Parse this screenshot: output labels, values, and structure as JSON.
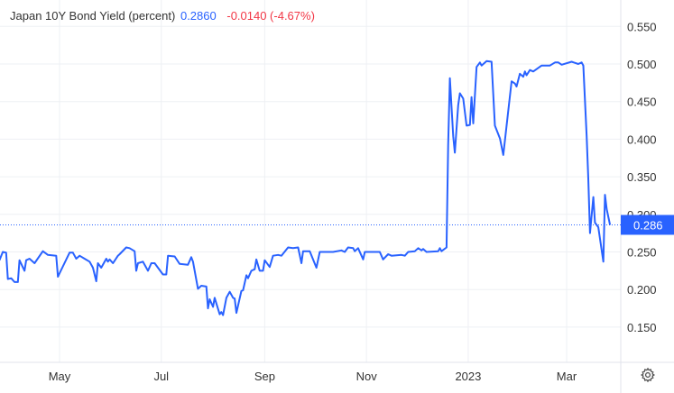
{
  "legend": {
    "name": "Japan 10Y Bond Yield (percent)",
    "last": "0.2860",
    "change": "-0.0140 (-4.67%)"
  },
  "price_label": "0.286",
  "colors": {
    "line": "#2962ff",
    "negative": "#f23645",
    "grid": "#e8ebf0"
  },
  "settings_icon": "gear-icon",
  "chart_data": {
    "type": "line",
    "title": "Japan 10Y Bond Yield (percent)",
    "xlabel": "",
    "ylabel": "",
    "ylim": [
      0.125,
      0.555
    ],
    "grid": true,
    "y_axis_side": "right",
    "x_ticks": [
      {
        "date": "2022-05-01",
        "label": "May"
      },
      {
        "date": "2022-07-01",
        "label": "Jul"
      },
      {
        "date": "2022-09-01",
        "label": "Sep"
      },
      {
        "date": "2022-11-01",
        "label": "Nov"
      },
      {
        "date": "2023-01-01",
        "label": "2023"
      },
      {
        "date": "2023-03-01",
        "label": "Mar"
      }
    ],
    "y_ticks": [
      "0.150",
      "0.200",
      "0.250",
      "0.300",
      "0.350",
      "0.400",
      "0.450",
      "0.500",
      "0.550"
    ],
    "last_value": 0.286,
    "series": [
      {
        "points": [
          [
            "2022-03-26",
            0.239
          ],
          [
            "2022-03-28",
            0.25
          ],
          [
            "2022-03-30",
            0.249
          ],
          [
            "2022-03-31",
            0.214
          ],
          [
            "2022-04-02",
            0.215
          ],
          [
            "2022-04-04",
            0.21
          ],
          [
            "2022-04-06",
            0.21
          ],
          [
            "2022-04-07",
            0.239
          ],
          [
            "2022-04-10",
            0.225
          ],
          [
            "2022-04-11",
            0.239
          ],
          [
            "2022-04-13",
            0.241
          ],
          [
            "2022-04-16",
            0.235
          ],
          [
            "2022-04-21",
            0.251
          ],
          [
            "2022-04-24",
            0.246
          ],
          [
            "2022-04-29",
            0.245
          ],
          [
            "2022-04-30",
            0.217
          ],
          [
            "2022-05-02",
            0.226
          ],
          [
            "2022-05-07",
            0.249
          ],
          [
            "2022-05-09",
            0.249
          ],
          [
            "2022-05-11",
            0.241
          ],
          [
            "2022-05-13",
            0.245
          ],
          [
            "2022-05-16",
            0.241
          ],
          [
            "2022-05-19",
            0.237
          ],
          [
            "2022-05-21",
            0.229
          ],
          [
            "2022-05-23",
            0.211
          ],
          [
            "2022-05-24",
            0.235
          ],
          [
            "2022-05-26",
            0.229
          ],
          [
            "2022-05-29",
            0.241
          ],
          [
            "2022-05-30",
            0.237
          ],
          [
            "2022-05-31",
            0.24
          ],
          [
            "2022-06-02",
            0.235
          ],
          [
            "2022-06-05",
            0.245
          ],
          [
            "2022-06-06",
            0.247
          ],
          [
            "2022-06-10",
            0.256
          ],
          [
            "2022-06-12",
            0.255
          ],
          [
            "2022-06-15",
            0.251
          ],
          [
            "2022-06-16",
            0.225
          ],
          [
            "2022-06-17",
            0.235
          ],
          [
            "2022-06-20",
            0.237
          ],
          [
            "2022-06-23",
            0.225
          ],
          [
            "2022-06-25",
            0.235
          ],
          [
            "2022-06-27",
            0.235
          ],
          [
            "2022-07-02",
            0.22
          ],
          [
            "2022-07-04",
            0.22
          ],
          [
            "2022-07-05",
            0.245
          ],
          [
            "2022-07-09",
            0.244
          ],
          [
            "2022-07-12",
            0.234
          ],
          [
            "2022-07-17",
            0.233
          ],
          [
            "2022-07-19",
            0.243
          ],
          [
            "2022-07-20",
            0.237
          ],
          [
            "2022-07-23",
            0.201
          ],
          [
            "2022-07-25",
            0.205
          ],
          [
            "2022-07-28",
            0.204
          ],
          [
            "2022-07-29",
            0.175
          ],
          [
            "2022-07-30",
            0.187
          ],
          [
            "2022-08-01",
            0.177
          ],
          [
            "2022-08-02",
            0.189
          ],
          [
            "2022-08-05",
            0.167
          ],
          [
            "2022-08-06",
            0.17
          ],
          [
            "2022-08-07",
            0.166
          ],
          [
            "2022-08-09",
            0.189
          ],
          [
            "2022-08-11",
            0.197
          ],
          [
            "2022-08-13",
            0.189
          ],
          [
            "2022-08-14",
            0.188
          ],
          [
            "2022-08-15",
            0.169
          ],
          [
            "2022-08-18",
            0.198
          ],
          [
            "2022-08-19",
            0.199
          ],
          [
            "2022-08-21",
            0.219
          ],
          [
            "2022-08-22",
            0.215
          ],
          [
            "2022-08-24",
            0.225
          ],
          [
            "2022-08-26",
            0.227
          ],
          [
            "2022-08-27",
            0.24
          ],
          [
            "2022-08-29",
            0.225
          ],
          [
            "2022-08-31",
            0.225
          ],
          [
            "2022-09-01",
            0.239
          ],
          [
            "2022-09-04",
            0.23
          ],
          [
            "2022-09-06",
            0.245
          ],
          [
            "2022-09-09",
            0.246
          ],
          [
            "2022-09-11",
            0.245
          ],
          [
            "2022-09-15",
            0.256
          ],
          [
            "2022-09-18",
            0.255
          ],
          [
            "2022-09-21",
            0.256
          ],
          [
            "2022-09-23",
            0.235
          ],
          [
            "2022-09-24",
            0.251
          ],
          [
            "2022-09-28",
            0.251
          ],
          [
            "2022-10-02",
            0.229
          ],
          [
            "2022-10-04",
            0.25
          ],
          [
            "2022-10-08",
            0.25
          ],
          [
            "2022-10-12",
            0.25
          ],
          [
            "2022-10-17",
            0.252
          ],
          [
            "2022-10-19",
            0.25
          ],
          [
            "2022-10-21",
            0.256
          ],
          [
            "2022-10-24",
            0.255
          ],
          [
            "2022-10-25",
            0.251
          ],
          [
            "2022-10-27",
            0.255
          ],
          [
            "2022-10-30",
            0.24
          ],
          [
            "2022-10-31",
            0.25
          ],
          [
            "2022-11-09",
            0.25
          ],
          [
            "2022-11-11",
            0.24
          ],
          [
            "2022-11-14",
            0.247
          ],
          [
            "2022-11-16",
            0.245
          ],
          [
            "2022-11-22",
            0.246
          ],
          [
            "2022-11-24",
            0.245
          ],
          [
            "2022-11-26",
            0.25
          ],
          [
            "2022-11-30",
            0.251
          ],
          [
            "2022-12-02",
            0.255
          ],
          [
            "2022-12-04",
            0.252
          ],
          [
            "2022-12-05",
            0.254
          ],
          [
            "2022-12-07",
            0.25
          ],
          [
            "2022-12-14",
            0.251
          ],
          [
            "2022-12-15",
            0.255
          ],
          [
            "2022-12-16",
            0.251
          ],
          [
            "2022-12-19",
            0.256
          ],
          [
            "2022-12-20",
            0.392
          ],
          [
            "2022-12-21",
            0.481
          ],
          [
            "2022-12-23",
            0.404
          ],
          [
            "2022-12-24",
            0.382
          ],
          [
            "2022-12-26",
            0.445
          ],
          [
            "2022-12-27",
            0.461
          ],
          [
            "2022-12-29",
            0.454
          ],
          [
            "2022-12-31",
            0.418
          ],
          [
            "2023-01-02",
            0.419
          ],
          [
            "2023-01-03",
            0.456
          ],
          [
            "2023-01-04",
            0.421
          ],
          [
            "2023-01-06",
            0.496
          ],
          [
            "2023-01-08",
            0.502
          ],
          [
            "2023-01-09",
            0.498
          ],
          [
            "2023-01-12",
            0.504
          ],
          [
            "2023-01-15",
            0.503
          ],
          [
            "2023-01-17",
            0.418
          ],
          [
            "2023-01-20",
            0.401
          ],
          [
            "2023-01-22",
            0.379
          ],
          [
            "2023-01-27",
            0.477
          ],
          [
            "2023-01-29",
            0.474
          ],
          [
            "2023-01-30",
            0.47
          ],
          [
            "2023-02-01",
            0.487
          ],
          [
            "2023-02-03",
            0.483
          ],
          [
            "2023-02-04",
            0.49
          ],
          [
            "2023-02-05",
            0.485
          ],
          [
            "2023-02-07",
            0.492
          ],
          [
            "2023-02-09",
            0.49
          ],
          [
            "2023-02-14",
            0.498
          ],
          [
            "2023-02-19",
            0.498
          ],
          [
            "2023-02-22",
            0.502
          ],
          [
            "2023-02-24",
            0.502
          ],
          [
            "2023-02-26",
            0.499
          ],
          [
            "2023-03-04",
            0.503
          ],
          [
            "2023-03-08",
            0.5
          ],
          [
            "2023-03-10",
            0.502
          ],
          [
            "2023-03-11",
            0.498
          ],
          [
            "2023-03-13",
            0.404
          ],
          [
            "2023-03-14",
            0.348
          ],
          [
            "2023-03-15",
            0.275
          ],
          [
            "2023-03-17",
            0.323
          ],
          [
            "2023-03-18",
            0.289
          ],
          [
            "2023-03-20",
            0.283
          ],
          [
            "2023-03-23",
            0.237
          ],
          [
            "2023-03-24",
            0.326
          ],
          [
            "2023-03-25",
            0.307
          ],
          [
            "2023-03-27",
            0.286
          ]
        ]
      }
    ]
  }
}
